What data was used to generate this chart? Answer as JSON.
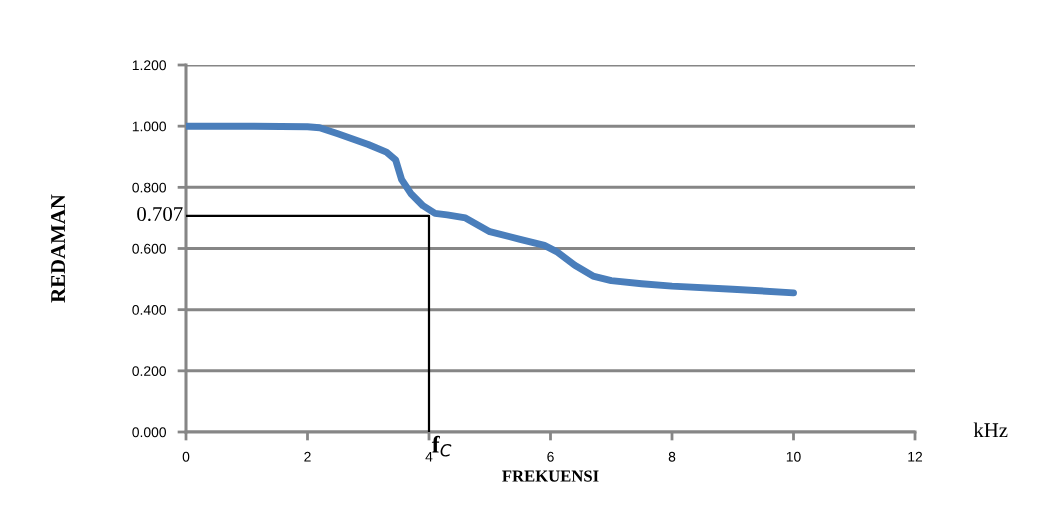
{
  "chart_data": {
    "type": "line",
    "xlabel": "FREKUENSI",
    "ylabel": "REDAMAN",
    "xlim": [
      0,
      12
    ],
    "xticks": [
      0,
      2,
      4,
      6,
      8,
      10,
      12
    ],
    "ylim": [
      0,
      1.2
    ],
    "yticks": [
      {
        "value": 0,
        "label": "0.000"
      },
      {
        "value": 0.2,
        "label": "0.200"
      },
      {
        "value": 0.4,
        "label": "0.400"
      },
      {
        "value": 0.6,
        "label": "0.600"
      },
      {
        "value": 0.8,
        "label": "0.800"
      },
      {
        "value": 1.0,
        "label": "1.000"
      },
      {
        "value": 1.2,
        "label": "1.200"
      }
    ],
    "grid": "y",
    "marker": "none",
    "line_style": "solid",
    "series": [
      {
        "color": "#4a7ebb",
        "x": [
          0,
          1,
          2,
          2.2,
          2.5,
          3,
          3.3,
          3.45,
          3.55,
          3.7,
          3.9,
          4.1,
          4.3,
          4.6,
          5,
          5.5,
          5.9,
          6.1,
          6.4,
          6.7,
          7,
          7.5,
          8,
          9,
          10
        ],
        "values": [
          1.0,
          1.0,
          0.998,
          0.995,
          0.975,
          0.94,
          0.915,
          0.89,
          0.825,
          0.78,
          0.74,
          0.715,
          0.71,
          0.7,
          0.655,
          0.63,
          0.61,
          0.59,
          0.545,
          0.51,
          0.495,
          0.485,
          0.477,
          0.467,
          0.455
        ]
      },
      {
        "color": "#000000",
        "x": [
          0,
          4,
          4
        ],
        "values": [
          0.707,
          0.707,
          0
        ]
      }
    ],
    "annotations": [
      {
        "text": "0.707",
        "x": 0,
        "y": 0.707
      },
      {
        "text": "f$_{C}$",
        "x": 4,
        "y": 0
      },
      "kHz"
    ]
  }
}
